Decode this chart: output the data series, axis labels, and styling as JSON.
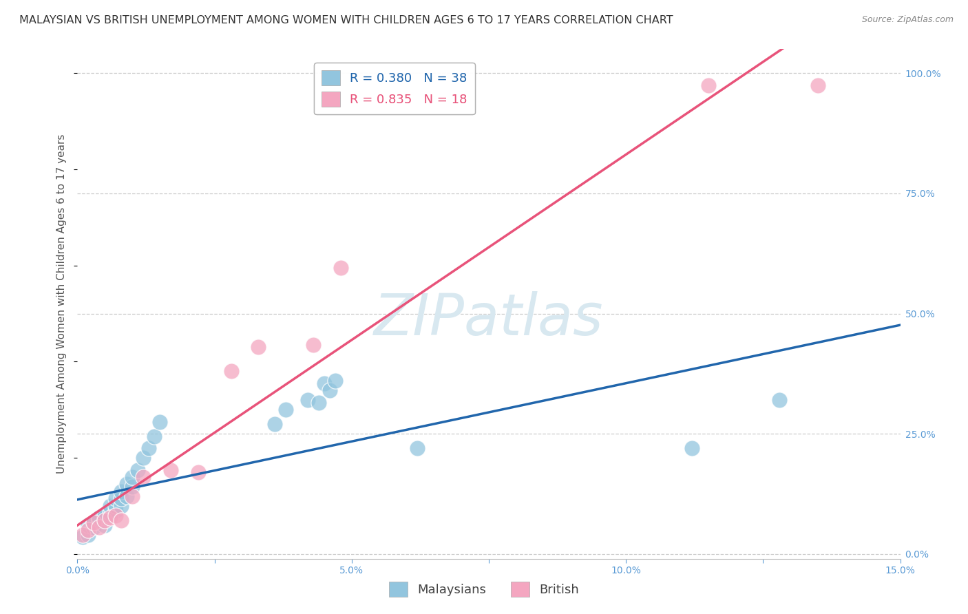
{
  "title": "MALAYSIAN VS BRITISH UNEMPLOYMENT AMONG WOMEN WITH CHILDREN AGES 6 TO 17 YEARS CORRELATION CHART",
  "source": "Source: ZipAtlas.com",
  "ylabel": "Unemployment Among Women with Children Ages 6 to 17 years",
  "xlim": [
    0.0,
    0.15
  ],
  "ylim": [
    -0.01,
    1.05
  ],
  "xticks": [
    0.0,
    0.025,
    0.05,
    0.075,
    0.1,
    0.125,
    0.15
  ],
  "xticklabels": [
    "0.0%",
    "",
    "5.0%",
    "",
    "10.0%",
    "",
    "15.0%"
  ],
  "yticks_right": [
    0.0,
    0.25,
    0.5,
    0.75,
    1.0
  ],
  "yticklabels_right": [
    "0.0%",
    "25.0%",
    "50.0%",
    "75.0%",
    "100.0%"
  ],
  "malaysian_R": 0.38,
  "malaysian_N": 38,
  "british_R": 0.835,
  "british_N": 18,
  "malaysian_color": "#92c5de",
  "british_color": "#f4a6c0",
  "malaysian_line_color": "#2166ac",
  "british_line_color": "#e8537a",
  "background_color": "#ffffff",
  "grid_color": "#cccccc",
  "watermark": "ZIPatlas",
  "watermark_color": "#d8e8f0",
  "malaysian_x": [
    0.001,
    0.002,
    0.002,
    0.003,
    0.003,
    0.004,
    0.004,
    0.005,
    0.005,
    0.005,
    0.006,
    0.006,
    0.006,
    0.007,
    0.007,
    0.007,
    0.008,
    0.008,
    0.008,
    0.009,
    0.009,
    0.01,
    0.01,
    0.011,
    0.012,
    0.013,
    0.014,
    0.015,
    0.036,
    0.038,
    0.042,
    0.044,
    0.045,
    0.046,
    0.047,
    0.062,
    0.112,
    0.128
  ],
  "malaysian_y": [
    0.035,
    0.04,
    0.06,
    0.055,
    0.065,
    0.07,
    0.075,
    0.06,
    0.075,
    0.08,
    0.08,
    0.085,
    0.1,
    0.09,
    0.1,
    0.115,
    0.1,
    0.115,
    0.13,
    0.12,
    0.145,
    0.14,
    0.16,
    0.175,
    0.2,
    0.22,
    0.245,
    0.275,
    0.27,
    0.3,
    0.32,
    0.315,
    0.355,
    0.34,
    0.36,
    0.22,
    0.22,
    0.32
  ],
  "british_x": [
    0.001,
    0.002,
    0.003,
    0.004,
    0.005,
    0.006,
    0.007,
    0.008,
    0.01,
    0.012,
    0.017,
    0.022,
    0.028,
    0.033,
    0.043,
    0.048,
    0.115,
    0.135
  ],
  "british_y": [
    0.04,
    0.05,
    0.065,
    0.055,
    0.07,
    0.075,
    0.08,
    0.07,
    0.12,
    0.16,
    0.175,
    0.17,
    0.38,
    0.43,
    0.435,
    0.595,
    0.975,
    0.975
  ],
  "title_fontsize": 11.5,
  "axis_label_fontsize": 11,
  "tick_fontsize": 10,
  "legend_fontsize": 13
}
